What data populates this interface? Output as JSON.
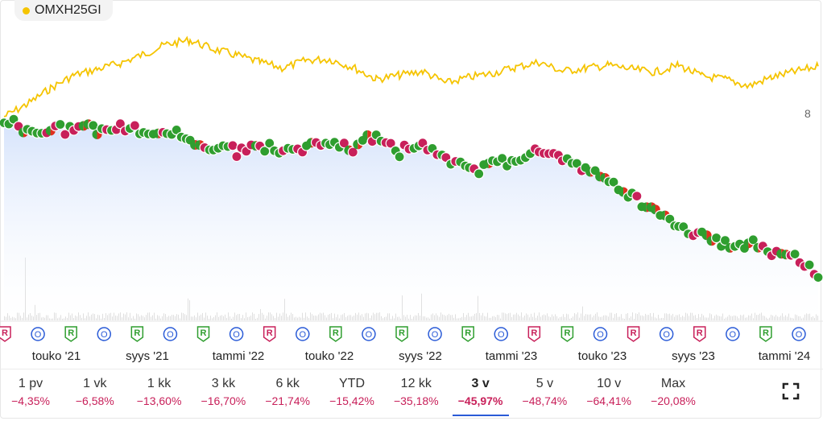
{
  "legend": {
    "label": "OMXH25GI",
    "color": "#f5c400"
  },
  "chart_data": {
    "type": "line",
    "series": [
      {
        "name": "OMXH25GI",
        "color": "#f5c400",
        "x": [
          "2021-03",
          "2021-04",
          "2021-05",
          "2021-06",
          "2021-07",
          "2021-08",
          "2021-09",
          "2021-10",
          "2021-11",
          "2021-12",
          "2022-01",
          "2022-02",
          "2022-03",
          "2022-04",
          "2022-05",
          "2022-06",
          "2022-07",
          "2022-08",
          "2022-09",
          "2022-10",
          "2022-11",
          "2022-12",
          "2023-01",
          "2023-02",
          "2023-03",
          "2023-04",
          "2023-05",
          "2023-06",
          "2023-07",
          "2023-08",
          "2023-09",
          "2023-10",
          "2023-11",
          "2023-12",
          "2024-01",
          "2024-02"
        ],
        "y": [
          5,
          30,
          62,
          88,
          100,
          112,
          130,
          150,
          158,
          140,
          128,
          114,
          102,
          118,
          120,
          104,
          80,
          88,
          96,
          72,
          84,
          92,
          104,
          114,
          96,
          102,
          108,
          100,
          94,
          108,
          86,
          80,
          66,
          84,
          95,
          106
        ]
      },
      {
        "name": "",
        "color": "#2a7ad2",
        "x": [
          "2021-03",
          "2021-04",
          "2021-05",
          "2021-06",
          "2021-07",
          "2021-08",
          "2021-09",
          "2021-10",
          "2021-11",
          "2021-12",
          "2022-01",
          "2022-02",
          "2022-03",
          "2022-04",
          "2022-05",
          "2022-06",
          "2022-07",
          "2022-08",
          "2022-09",
          "2022-10",
          "2022-11",
          "2022-12",
          "2023-01",
          "2023-02",
          "2023-03",
          "2023-04",
          "2023-05",
          "2023-06",
          "2023-07",
          "2023-08",
          "2023-09",
          "2023-10",
          "2023-11",
          "2023-12",
          "2024-01",
          "2024-02"
        ],
        "y": [
          0,
          -8,
          -10,
          -4,
          -6,
          -4,
          -8,
          -10,
          -14,
          -22,
          -24,
          -20,
          -26,
          -22,
          -18,
          -22,
          -10,
          -24,
          -20,
          -30,
          -40,
          -34,
          -32,
          -22,
          -28,
          -40,
          -48,
          -62,
          -74,
          -84,
          -92,
          -100,
          -98,
          -104,
          -110,
          -124
        ]
      }
    ],
    "last_value_label": "8",
    "x_tick_labels": [
      "touko '21",
      "syys '21",
      "tammi '22",
      "touko '22",
      "syys '22",
      "tammi '23",
      "touko '23",
      "syys '23",
      "tammi '24"
    ]
  },
  "range_buttons": [
    {
      "label": "1 pv",
      "change": "−4,35%"
    },
    {
      "label": "1 vk",
      "change": "−6,58%"
    },
    {
      "label": "1 kk",
      "change": "−13,60%"
    },
    {
      "label": "3 kk",
      "change": "−16,70%"
    },
    {
      "label": "6 kk",
      "change": "−21,74%"
    },
    {
      "label": "YTD",
      "change": "−15,42%"
    },
    {
      "label": "12 kk",
      "change": "−35,18%"
    },
    {
      "label": "3 v",
      "change": "−45,97%",
      "active": true
    },
    {
      "label": "5 v",
      "change": "−48,74%"
    },
    {
      "label": "10 v",
      "change": "−64,41%"
    },
    {
      "label": "Max",
      "change": "−20,08%"
    }
  ],
  "event_markers": [
    {
      "type": "R",
      "style": "pink"
    },
    {
      "type": "O",
      "style": "blue"
    },
    {
      "type": "R",
      "style": "green"
    },
    {
      "type": "O",
      "style": "blue"
    },
    {
      "type": "R",
      "style": "green"
    },
    {
      "type": "O",
      "style": "blue"
    },
    {
      "type": "R",
      "style": "green"
    },
    {
      "type": "O",
      "style": "blue"
    },
    {
      "type": "R",
      "style": "pink"
    },
    {
      "type": "O",
      "style": "blue"
    },
    {
      "type": "R",
      "style": "green"
    },
    {
      "type": "O",
      "style": "blue"
    },
    {
      "type": "R",
      "style": "green"
    },
    {
      "type": "O",
      "style": "blue"
    },
    {
      "type": "R",
      "style": "green"
    },
    {
      "type": "O",
      "style": "blue"
    },
    {
      "type": "R",
      "style": "pink"
    },
    {
      "type": "R",
      "style": "green"
    },
    {
      "type": "O",
      "style": "blue"
    },
    {
      "type": "R",
      "style": "pink"
    },
    {
      "type": "O",
      "style": "blue"
    },
    {
      "type": "R",
      "style": "pink"
    },
    {
      "type": "O",
      "style": "blue"
    },
    {
      "type": "R",
      "style": "green"
    },
    {
      "type": "O",
      "style": "blue"
    }
  ],
  "colors": {
    "up": "#2f9e2f",
    "down": "#c8205a",
    "accent": "#2a5bd7"
  }
}
